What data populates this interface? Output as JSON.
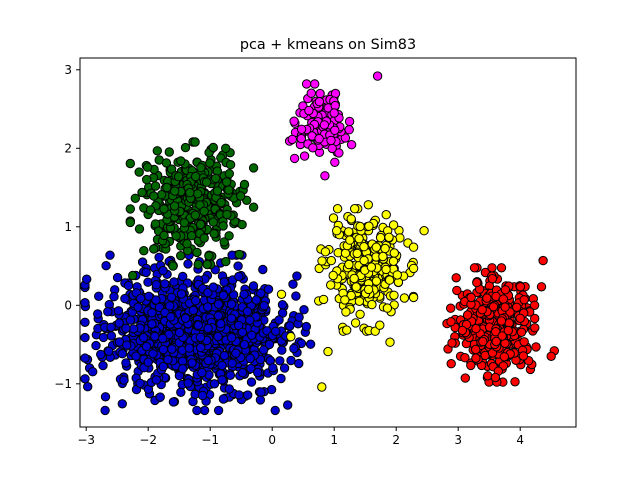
{
  "chart_data": {
    "type": "scatter",
    "title": "pca + kmeans on Sim83",
    "xlabel": "",
    "ylabel": "",
    "xlim": [
      -3.1,
      4.9
    ],
    "ylim": [
      -1.55,
      3.15
    ],
    "xticks": [
      -3,
      -2,
      -1,
      0,
      1,
      2,
      3,
      4
    ],
    "yticks": [
      -1,
      0,
      1,
      2,
      3
    ],
    "grid": false,
    "legend": "none",
    "marker_edge_color": "#000000",
    "clusters": [
      {
        "color": "#0000cc",
        "center": [
          -1.2,
          -0.35
        ],
        "spread": [
          0.7,
          0.38
        ],
        "count": 1150,
        "extra_points": [
          [
            -2.7,
            -0.28
          ],
          [
            -2.6,
            -0.28
          ],
          [
            -2.2,
            0.38
          ],
          [
            0.25,
            -1.27
          ],
          [
            -0.55,
            0.5
          ],
          [
            0.35,
            -0.55
          ],
          [
            0.2,
            -0.8
          ]
        ]
      },
      {
        "color": "#006600",
        "center": [
          -1.3,
          1.3
        ],
        "spread": [
          0.38,
          0.3
        ],
        "count": 380,
        "extra_points": [
          [
            -0.95,
            2.01
          ],
          [
            -0.75,
            2.0
          ],
          [
            -0.3,
            1.75
          ],
          [
            -0.3,
            1.25
          ],
          [
            -1.6,
            0.5
          ],
          [
            -2.25,
            0.38
          ]
        ]
      },
      {
        "color": "#ff00ff",
        "center": [
          0.8,
          2.3
        ],
        "spread": [
          0.2,
          0.2
        ],
        "count": 130,
        "extra_points": [
          [
            1.7,
            2.92
          ],
          [
            0.85,
            1.65
          ]
        ]
      },
      {
        "color": "#ffff00",
        "center": [
          1.5,
          0.45
        ],
        "spread": [
          0.3,
          0.3
        ],
        "count": 320,
        "extra_points": [
          [
            0.8,
            -1.04
          ],
          [
            0.9,
            -0.59
          ],
          [
            0.3,
            -0.4
          ],
          [
            1.9,
            -0.47
          ],
          [
            2.45,
            0.95
          ],
          [
            1.55,
            1.28
          ],
          [
            0.15,
            0.14
          ]
        ]
      },
      {
        "color": "#ff0000",
        "center": [
          3.6,
          -0.25
        ],
        "spread": [
          0.3,
          0.28
        ],
        "count": 430,
        "extra_points": [
          [
            4.55,
            -0.58
          ],
          [
            4.5,
            -0.65
          ],
          [
            3.6,
            -0.92
          ],
          [
            4.37,
            0.57
          ],
          [
            2.9,
            -0.48
          ]
        ]
      }
    ]
  }
}
